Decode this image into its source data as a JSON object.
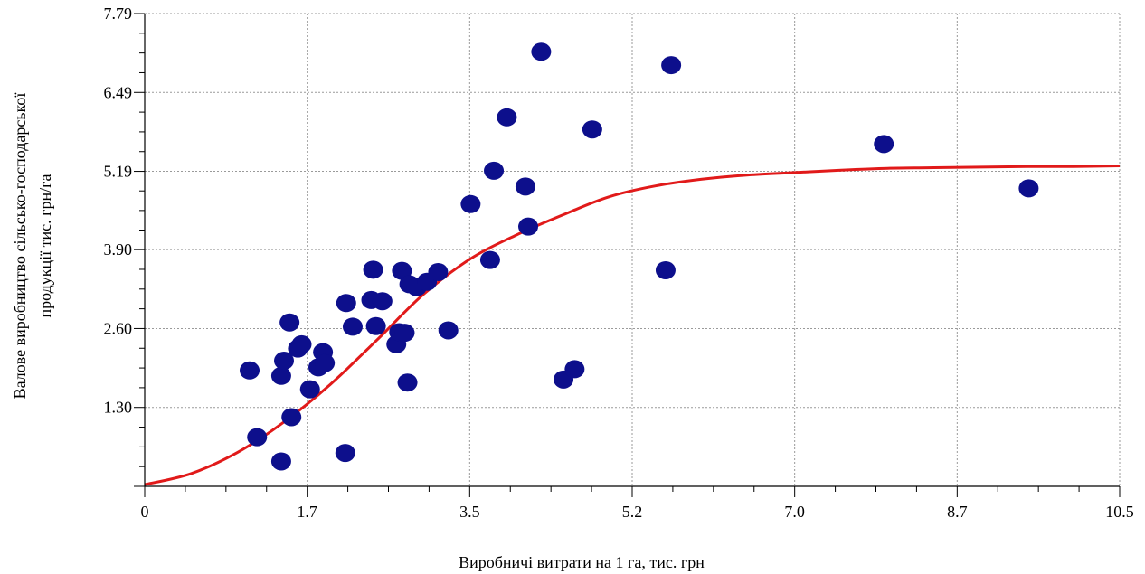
{
  "chart_data": {
    "type": "scatter",
    "xlabel": "Виробничі витрати на 1 га, тис. грн",
    "ylabel_line1": "Валове виробництво сільсько-господарської",
    "ylabel_line2": "продукції тис. грн/га",
    "xlim": [
      0,
      10.5
    ],
    "ylim": [
      0,
      7.79
    ],
    "x_ticks": [
      "0",
      "1.7",
      "3.5",
      "5.2",
      "7.0",
      "8.7",
      "10.5"
    ],
    "x_tick_values": [
      0,
      1.75,
      3.5,
      5.25,
      7.0,
      8.75,
      10.5
    ],
    "y_ticks": [
      "1.30",
      "2.60",
      "3.90",
      "5.19",
      "6.49",
      "7.79"
    ],
    "y_tick_values": [
      1.3,
      2.6,
      3.9,
      5.19,
      6.49,
      7.79
    ],
    "grid": true,
    "colors": {
      "points": "#0d0f8c",
      "curve": "#e11a1a",
      "grid": "#9a9a9a",
      "axis": "#000000"
    },
    "points": [
      {
        "x": 1.13,
        "y": 1.91
      },
      {
        "x": 1.21,
        "y": 0.81
      },
      {
        "x": 1.47,
        "y": 0.41
      },
      {
        "x": 1.47,
        "y": 1.82
      },
      {
        "x": 1.5,
        "y": 2.07
      },
      {
        "x": 1.56,
        "y": 2.7
      },
      {
        "x": 1.58,
        "y": 1.14
      },
      {
        "x": 1.65,
        "y": 2.27
      },
      {
        "x": 1.69,
        "y": 2.34
      },
      {
        "x": 1.78,
        "y": 1.6
      },
      {
        "x": 1.87,
        "y": 1.96
      },
      {
        "x": 1.92,
        "y": 2.21
      },
      {
        "x": 1.94,
        "y": 2.03
      },
      {
        "x": 2.16,
        "y": 0.55
      },
      {
        "x": 2.17,
        "y": 3.02
      },
      {
        "x": 2.24,
        "y": 2.63
      },
      {
        "x": 2.44,
        "y": 3.07
      },
      {
        "x": 2.46,
        "y": 3.57
      },
      {
        "x": 2.49,
        "y": 2.64
      },
      {
        "x": 2.56,
        "y": 3.05
      },
      {
        "x": 2.71,
        "y": 2.34
      },
      {
        "x": 2.74,
        "y": 2.54
      },
      {
        "x": 2.77,
        "y": 3.55
      },
      {
        "x": 2.8,
        "y": 2.53
      },
      {
        "x": 2.83,
        "y": 1.71
      },
      {
        "x": 2.85,
        "y": 3.33
      },
      {
        "x": 2.93,
        "y": 3.28
      },
      {
        "x": 3.04,
        "y": 3.37
      },
      {
        "x": 3.16,
        "y": 3.53
      },
      {
        "x": 3.27,
        "y": 2.57
      },
      {
        "x": 3.51,
        "y": 4.65
      },
      {
        "x": 3.72,
        "y": 3.73
      },
      {
        "x": 3.76,
        "y": 5.2
      },
      {
        "x": 3.9,
        "y": 6.08
      },
      {
        "x": 4.1,
        "y": 4.94
      },
      {
        "x": 4.13,
        "y": 4.28
      },
      {
        "x": 4.27,
        "y": 7.16
      },
      {
        "x": 4.51,
        "y": 1.76
      },
      {
        "x": 4.63,
        "y": 1.93
      },
      {
        "x": 4.82,
        "y": 5.88
      },
      {
        "x": 5.61,
        "y": 3.56
      },
      {
        "x": 5.67,
        "y": 6.94
      },
      {
        "x": 7.96,
        "y": 5.64
      },
      {
        "x": 9.52,
        "y": 4.91
      }
    ],
    "fitted_curve": {
      "x": [
        0,
        0.5,
        1.0,
        1.5,
        2.0,
        2.5,
        3.0,
        3.5,
        4.0,
        4.5,
        5.0,
        5.5,
        6.0,
        6.5,
        7.0,
        7.5,
        8.0,
        8.5,
        9.0,
        9.5,
        10.0,
        10.5
      ],
      "y": [
        0.03,
        0.21,
        0.56,
        1.06,
        1.68,
        2.41,
        3.16,
        3.74,
        4.14,
        4.47,
        4.77,
        4.95,
        5.06,
        5.13,
        5.17,
        5.21,
        5.24,
        5.25,
        5.26,
        5.27,
        5.27,
        5.28
      ]
    }
  }
}
